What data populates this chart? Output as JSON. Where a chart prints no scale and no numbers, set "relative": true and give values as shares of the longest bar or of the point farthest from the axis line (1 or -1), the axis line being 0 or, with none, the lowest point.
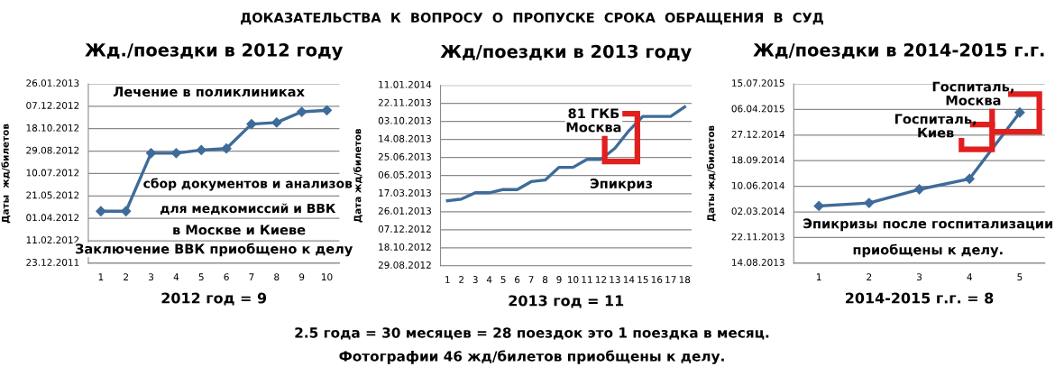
{
  "chart_data": [
    {
      "type": "line",
      "title": "Жд./поездки в 2012 году",
      "xlabel": "2012 год = 9",
      "ylabel": "Даты  жд/билетов",
      "relative": true,
      "categories": [
        "1",
        "2",
        "3",
        "4",
        "5",
        "6",
        "7",
        "8",
        "9",
        "10"
      ],
      "series": [
        {
          "color": "#3e6b9a",
          "values": [
            0.34,
            0.34,
            0.72,
            0.72,
            0.74,
            0.75,
            0.91,
            0.92,
            0.99,
            1
          ]
        }
      ],
      "grid": "y",
      "marker": "diamond",
      "line_style": "solid",
      "annotations": [
        "Лечение в поликлиниках",
        "сбор документов и анализов",
        "для медкомиссий и ВВК",
        "в Москве и Киеве",
        "Заключение ВВК приобщено к делу",
        "23.12.2011",
        "11.02.2012",
        "01.04.2012",
        "21.05.2012",
        "10.07.2012",
        "29.08.2012",
        "18.10.2012",
        "07.12.2012",
        "26.01.2013"
      ]
    },
    {
      "type": "line",
      "title": "Жд/поездки в 2013 году",
      "xlabel": "2013 год = 11",
      "ylabel": "Дата жд/билетов",
      "relative": true,
      "categories": [
        "1",
        "2",
        "3",
        "4",
        "5",
        "6",
        "7",
        "8",
        "9",
        "10",
        "11",
        "12",
        "13",
        "14",
        "15",
        "16",
        "17",
        "18"
      ],
      "series": [
        {
          "color": "#3e6b9a",
          "values": [
            0.41,
            0.42,
            0.46,
            0.46,
            0.48,
            0.48,
            0.53,
            0.54,
            0.62,
            0.62,
            0.67,
            0.67,
            0.74,
            0.85,
            0.94,
            0.94,
            0.94,
            1
          ]
        }
      ],
      "grid": "y",
      "marker": "none",
      "line_style": "solid",
      "annotations": [
        "81 ГКБ\nМосква",
        "Эпикриз",
        "ДОКАЗАТЕЛЬСТВА  К  ВОПРОСУ  О  ПРОПУСКЕ  СРОКА  ОБРАЩЕНИЯ  В  СУД",
        "2.5 года = 30 месяцев = 28 поездок это 1 поездка в месяц.",
        "Фотографии 46 жд/билетов приобщены к делу.",
        "29.08.2012",
        "18.10.2012",
        "07.12.2012",
        "26.01.2013",
        "17.03.2013",
        "06.05.2013",
        "25.06.2013",
        "14.08.2013",
        "03.10.2013",
        "22.11.2013",
        "11.01.2014"
      ]
    },
    {
      "type": "line",
      "title": "Жд/поездки в 2014-2015 г.г.",
      "xlabel": "2014-2015 г.г. = 8",
      "ylabel": "Даты жд/билетов",
      "relative": true,
      "categories": [
        "1",
        "2",
        "3",
        "4",
        "5"
      ],
      "series": [
        {
          "color": "#3e6b9a",
          "values": [
            0.38,
            0.4,
            0.49,
            0.56,
            1
          ]
        }
      ],
      "grid": "y",
      "marker": "diamond",
      "line_style": "solid",
      "annotations": [
        "Госпиталь,\nМосква",
        "Госпиталь,\nКиев",
        "Эпикризы после госпитализации",
        "приобщены к делу.",
        "14.08.2013",
        "22.11.2013",
        "02.03.2014",
        "10.06.2014",
        "18.09.2014",
        "27.12.2014",
        "06.04.2015",
        "15.07.2015"
      ]
    }
  ]
}
